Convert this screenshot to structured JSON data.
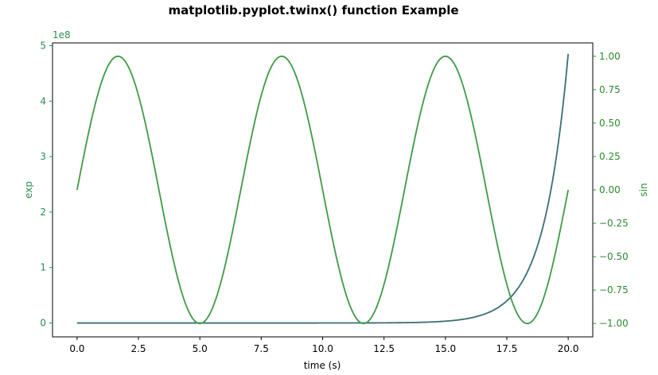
{
  "chart_data": {
    "type": "line",
    "title": "matplotlib.pyplot.twinx() function Example",
    "xlabel": "time (s)",
    "x_range": [
      0.0,
      20.0
    ],
    "xlim": [
      -1.0,
      21.0
    ],
    "xticks": [
      0.0,
      2.5,
      5.0,
      7.5,
      10.0,
      12.5,
      15.0,
      17.5,
      20.0
    ],
    "xtick_labels": [
      "0.0",
      "2.5",
      "5.0",
      "7.5",
      "10.0",
      "12.5",
      "15.0",
      "17.5",
      "20.0"
    ],
    "left_axis": {
      "label": "exp",
      "offset_text": "1e8",
      "color": "#2e8b57",
      "ylim": [
        -0.25,
        5.05
      ],
      "ticks": [
        0,
        1,
        2,
        3,
        4,
        5
      ],
      "tick_labels": [
        "0",
        "1",
        "2",
        "3",
        "4",
        "5"
      ]
    },
    "right_axis": {
      "label": "sin",
      "color": "#2e8b2e",
      "ylim": [
        -1.1,
        1.1
      ],
      "ticks": [
        -1.0,
        -0.75,
        -0.5,
        -0.25,
        0.0,
        0.25,
        0.5,
        0.75,
        1.0
      ],
      "tick_labels": [
        "−1.00",
        "−0.75",
        "−0.50",
        "−0.25",
        "0.00",
        "0.25",
        "0.50",
        "0.75",
        "1.00"
      ]
    },
    "series": [
      {
        "function": "exp(t)",
        "axis": "left",
        "scale": 100000000,
        "color": "#3a6e74"
      },
      {
        "function": "sin(0.3*pi*t)",
        "axis": "right",
        "color": "#3f9a46"
      }
    ]
  }
}
